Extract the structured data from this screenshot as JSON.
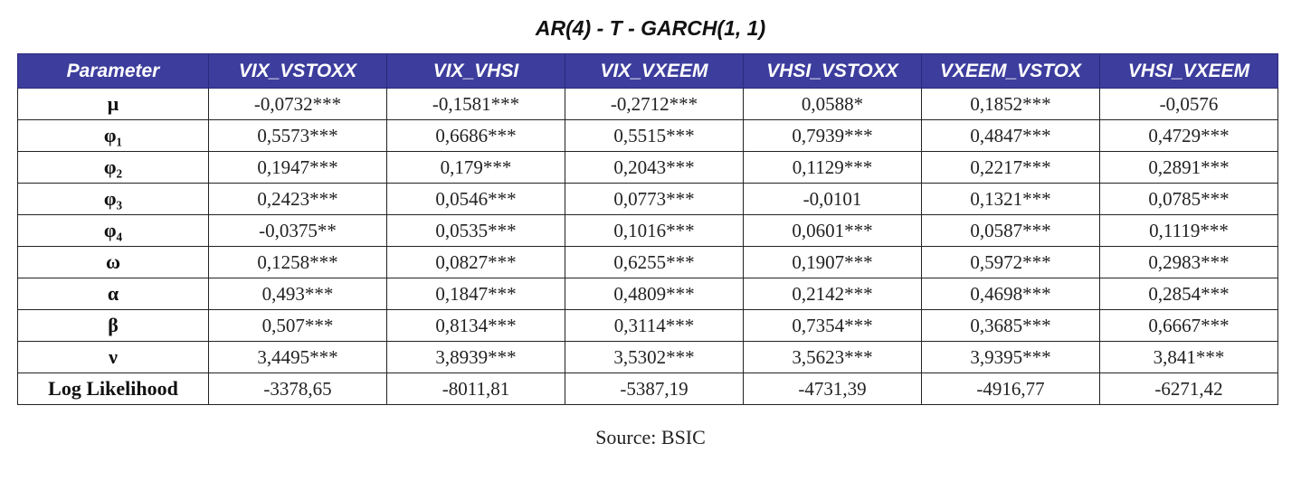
{
  "title": "AR(4) - T - GARCH(1, 1)",
  "headers": [
    "Parameter",
    "VIX_VSTOXX",
    "VIX_VHSI",
    "VIX_VXEEM",
    "VHSI_VSTOXX",
    "VXEEM_VSTOX",
    "VHSI_VXEEM"
  ],
  "rows": [
    {
      "param": "μ",
      "values": [
        "-0,0732***",
        "-0,1581***",
        "-0,2712***",
        "0,0588*",
        "0,1852***",
        "-0,0576"
      ]
    },
    {
      "param": "φ₁",
      "values": [
        "0,5573***",
        "0,6686***",
        "0,5515***",
        "0,7939***",
        "0,4847***",
        "0,4729***"
      ]
    },
    {
      "param": "φ₂",
      "values": [
        "0,1947***",
        "0,179***",
        "0,2043***",
        "0,1129***",
        "0,2217***",
        "0,2891***"
      ]
    },
    {
      "param": "φ₃",
      "values": [
        "0,2423***",
        "0,0546***",
        "0,0773***",
        "-0,0101",
        "0,1321***",
        "0,0785***"
      ]
    },
    {
      "param": "φ₄",
      "values": [
        "-0,0375**",
        "0,0535***",
        "0,1016***",
        "0,0601***",
        "0,0587***",
        "0,1119***"
      ]
    },
    {
      "param": "ω",
      "values": [
        "0,1258***",
        "0,0827***",
        "0,6255***",
        "0,1907***",
        "0,5972***",
        "0,2983***"
      ]
    },
    {
      "param": "α",
      "values": [
        "0,493***",
        "0,1847***",
        "0,4809***",
        "0,2142***",
        "0,4698***",
        "0,2854***"
      ]
    },
    {
      "param": "β",
      "values": [
        "0,507***",
        "0,8134***",
        "0,3114***",
        "0,7354***",
        "0,3685***",
        "0,6667***"
      ]
    },
    {
      "param": "ν",
      "values": [
        "3,4495***",
        "3,8939***",
        "3,5302***",
        "3,5623***",
        "3,9395***",
        "3,841***"
      ]
    },
    {
      "param": "Log Likelihood",
      "values": [
        "-3378,65",
        "-8011,81",
        "-5387,19",
        "-4731,39",
        "-4916,77",
        "-6271,42"
      ]
    }
  ],
  "source": "Source: BSIC"
}
